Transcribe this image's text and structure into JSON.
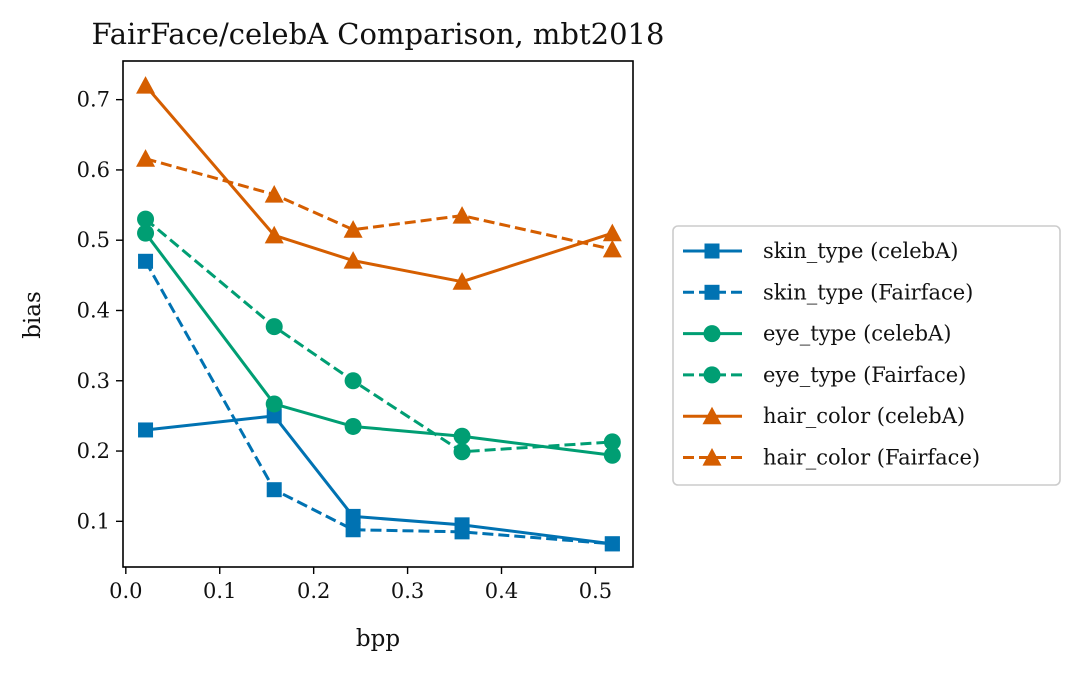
{
  "chart_data": {
    "type": "line",
    "title": "FairFace/celebA Comparison, mbt2018",
    "xlabel": "bpp",
    "ylabel": "bias",
    "xlim": [
      -0.003,
      0.54
    ],
    "ylim": [
      0.035,
      0.755
    ],
    "xticks": [
      0.0,
      0.1,
      0.2,
      0.3,
      0.4,
      0.5
    ],
    "xtick_labels": [
      "0.0",
      "0.1",
      "0.2",
      "0.3",
      "0.4",
      "0.5"
    ],
    "yticks": [
      0.1,
      0.2,
      0.3,
      0.4,
      0.5,
      0.6,
      0.7
    ],
    "ytick_labels": [
      "0.1",
      "0.2",
      "0.3",
      "0.4",
      "0.5",
      "0.6",
      "0.7"
    ],
    "grid": false,
    "legend_position": "outside-right",
    "series": [
      {
        "name": "skin_type (celebA)",
        "color": "#0072b2",
        "linestyle": "solid",
        "marker": "square",
        "x": [
          0.021,
          0.158,
          0.242,
          0.358,
          0.518
        ],
        "y": [
          0.23,
          0.25,
          0.107,
          0.095,
          0.068
        ]
      },
      {
        "name": "skin_type (Fairface)",
        "color": "#0072b2",
        "linestyle": "dashed",
        "marker": "square",
        "x": [
          0.021,
          0.158,
          0.242,
          0.358,
          0.518
        ],
        "y": [
          0.47,
          0.145,
          0.088,
          0.085,
          0.068
        ]
      },
      {
        "name": "eye_type (celebA)",
        "color": "#009e73",
        "linestyle": "solid",
        "marker": "circle",
        "x": [
          0.021,
          0.158,
          0.242,
          0.358,
          0.518
        ],
        "y": [
          0.51,
          0.267,
          0.235,
          0.221,
          0.194
        ]
      },
      {
        "name": "eye_type (Fairface)",
        "color": "#009e73",
        "linestyle": "dashed",
        "marker": "circle",
        "x": [
          0.021,
          0.158,
          0.242,
          0.358,
          0.518
        ],
        "y": [
          0.53,
          0.377,
          0.3,
          0.199,
          0.213
        ]
      },
      {
        "name": "hair_color (celebA)",
        "color": "#d55e00",
        "linestyle": "solid",
        "marker": "triangle",
        "x": [
          0.021,
          0.158,
          0.242,
          0.358,
          0.518
        ],
        "y": [
          0.72,
          0.507,
          0.471,
          0.441,
          0.51
        ]
      },
      {
        "name": "hair_color (Fairface)",
        "color": "#d55e00",
        "linestyle": "dashed",
        "marker": "triangle",
        "x": [
          0.021,
          0.158,
          0.242,
          0.358,
          0.518
        ],
        "y": [
          0.616,
          0.565,
          0.515,
          0.535,
          0.487
        ]
      }
    ]
  }
}
